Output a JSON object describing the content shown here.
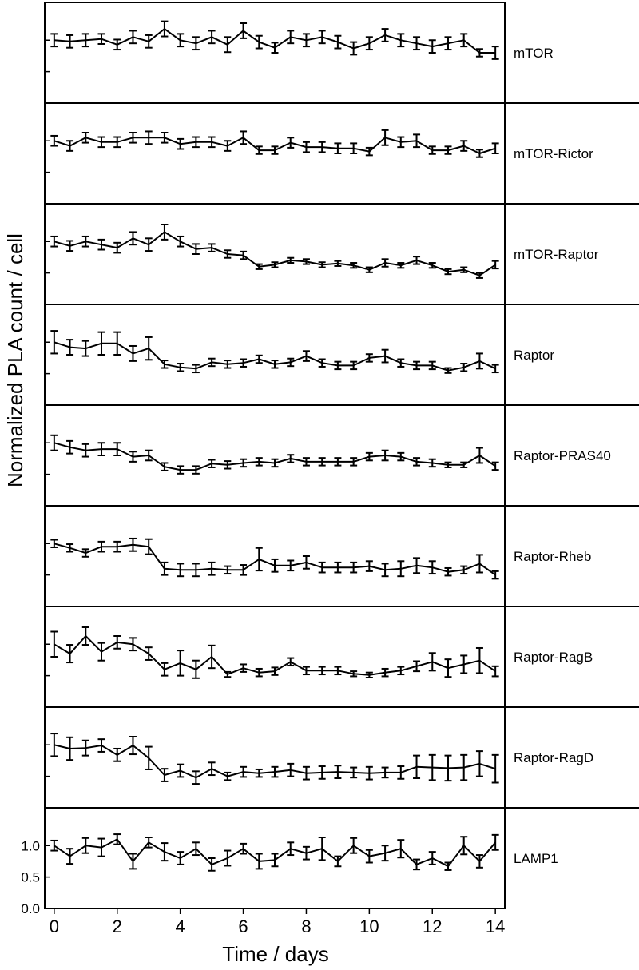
{
  "chart_data": {
    "type": "line",
    "xlabel": "Time / days",
    "ylabel": "Normalized PLA count / cell",
    "xlim": [
      -0.3,
      14.3
    ],
    "xticks": [
      0,
      2,
      4,
      6,
      8,
      10,
      12,
      14
    ],
    "ylim": [
      0,
      1.6
    ],
    "yticks": [
      0.0,
      0.5,
      1.0
    ],
    "ytick_labels_on": "LAMP1",
    "x": [
      0,
      0.5,
      1,
      1.5,
      2,
      2.5,
      3,
      3.5,
      4,
      4.5,
      5,
      5.5,
      6,
      6.5,
      7,
      7.5,
      8,
      8.5,
      9,
      9.5,
      10,
      10.5,
      11,
      11.5,
      12,
      12.5,
      13,
      13.5,
      14
    ],
    "series": [
      {
        "name": "mTOR",
        "values": [
          1.0,
          0.98,
          1.0,
          1.02,
          0.93,
          1.05,
          0.98,
          1.18,
          1.0,
          0.95,
          1.05,
          0.93,
          1.15,
          0.97,
          0.88,
          1.05,
          1.0,
          1.05,
          0.97,
          0.87,
          0.95,
          1.08,
          1.0,
          0.95,
          0.9,
          0.95,
          1.0,
          0.8,
          0.8
        ],
        "errors": [
          0.1,
          0.1,
          0.1,
          0.08,
          0.08,
          0.1,
          0.1,
          0.12,
          0.1,
          0.1,
          0.1,
          0.12,
          0.12,
          0.1,
          0.08,
          0.1,
          0.1,
          0.1,
          0.1,
          0.1,
          0.1,
          0.1,
          0.1,
          0.1,
          0.1,
          0.1,
          0.1,
          0.06,
          0.1
        ]
      },
      {
        "name": "mTOR-Rictor",
        "values": [
          1.0,
          0.92,
          1.05,
          0.98,
          0.98,
          1.05,
          1.05,
          1.05,
          0.95,
          0.98,
          0.98,
          0.92,
          1.05,
          0.85,
          0.85,
          0.97,
          0.9,
          0.9,
          0.88,
          0.88,
          0.83,
          1.05,
          0.98,
          1.0,
          0.85,
          0.85,
          0.92,
          0.8,
          0.88
        ],
        "errors": [
          0.08,
          0.08,
          0.08,
          0.08,
          0.08,
          0.08,
          0.1,
          0.08,
          0.08,
          0.08,
          0.08,
          0.08,
          0.1,
          0.06,
          0.06,
          0.08,
          0.08,
          0.08,
          0.08,
          0.08,
          0.06,
          0.12,
          0.08,
          0.1,
          0.06,
          0.06,
          0.08,
          0.06,
          0.08
        ]
      },
      {
        "name": "mTOR-Raptor",
        "values": [
          1.0,
          0.93,
          1.0,
          0.95,
          0.9,
          1.05,
          0.95,
          1.15,
          1.0,
          0.88,
          0.9,
          0.8,
          0.78,
          0.6,
          0.63,
          0.7,
          0.68,
          0.63,
          0.65,
          0.62,
          0.55,
          0.66,
          0.62,
          0.7,
          0.62,
          0.52,
          0.55,
          0.46,
          0.63
        ],
        "errors": [
          0.08,
          0.08,
          0.08,
          0.08,
          0.08,
          0.1,
          0.1,
          0.12,
          0.08,
          0.08,
          0.06,
          0.06,
          0.06,
          0.04,
          0.04,
          0.04,
          0.04,
          0.04,
          0.04,
          0.04,
          0.04,
          0.06,
          0.04,
          0.06,
          0.04,
          0.04,
          0.04,
          0.04,
          0.06
        ]
      },
      {
        "name": "Raptor",
        "values": [
          1.0,
          0.92,
          0.9,
          0.98,
          0.98,
          0.82,
          0.9,
          0.65,
          0.6,
          0.58,
          0.68,
          0.65,
          0.67,
          0.73,
          0.65,
          0.68,
          0.78,
          0.67,
          0.63,
          0.63,
          0.75,
          0.78,
          0.67,
          0.63,
          0.63,
          0.55,
          0.6,
          0.7,
          0.58
        ],
        "errors": [
          0.18,
          0.12,
          0.12,
          0.18,
          0.18,
          0.12,
          0.18,
          0.06,
          0.06,
          0.06,
          0.06,
          0.06,
          0.06,
          0.06,
          0.06,
          0.06,
          0.08,
          0.06,
          0.06,
          0.06,
          0.06,
          0.1,
          0.06,
          0.06,
          0.06,
          0.04,
          0.06,
          0.12,
          0.06
        ]
      },
      {
        "name": "Raptor-PRAS40",
        "values": [
          1.0,
          0.93,
          0.88,
          0.9,
          0.9,
          0.78,
          0.8,
          0.62,
          0.57,
          0.57,
          0.67,
          0.65,
          0.68,
          0.7,
          0.68,
          0.75,
          0.7,
          0.7,
          0.7,
          0.7,
          0.78,
          0.8,
          0.78,
          0.7,
          0.68,
          0.65,
          0.65,
          0.8,
          0.63
        ],
        "errors": [
          0.12,
          0.1,
          0.1,
          0.1,
          0.1,
          0.08,
          0.08,
          0.06,
          0.06,
          0.06,
          0.06,
          0.06,
          0.06,
          0.06,
          0.06,
          0.06,
          0.06,
          0.06,
          0.06,
          0.06,
          0.06,
          0.08,
          0.06,
          0.06,
          0.06,
          0.04,
          0.04,
          0.12,
          0.06
        ]
      },
      {
        "name": "Raptor-Rheb",
        "values": [
          1.0,
          0.93,
          0.85,
          0.95,
          0.95,
          0.98,
          0.95,
          0.6,
          0.58,
          0.58,
          0.6,
          0.58,
          0.58,
          0.75,
          0.65,
          0.65,
          0.7,
          0.62,
          0.62,
          0.62,
          0.64,
          0.58,
          0.6,
          0.65,
          0.62,
          0.55,
          0.58,
          0.68,
          0.5
        ],
        "errors": [
          0.06,
          0.06,
          0.06,
          0.08,
          0.08,
          0.1,
          0.12,
          0.1,
          0.1,
          0.1,
          0.1,
          0.06,
          0.08,
          0.18,
          0.1,
          0.08,
          0.1,
          0.08,
          0.08,
          0.08,
          0.08,
          0.1,
          0.12,
          0.12,
          0.1,
          0.06,
          0.06,
          0.14,
          0.06
        ]
      },
      {
        "name": "Raptor-RagB",
        "values": [
          1.0,
          0.85,
          1.13,
          0.88,
          1.03,
          1.0,
          0.85,
          0.6,
          0.7,
          0.6,
          0.8,
          0.52,
          0.62,
          0.55,
          0.57,
          0.72,
          0.58,
          0.58,
          0.58,
          0.53,
          0.51,
          0.55,
          0.58,
          0.65,
          0.72,
          0.62,
          0.68,
          0.74,
          0.57
        ],
        "errors": [
          0.2,
          0.14,
          0.14,
          0.14,
          0.1,
          0.1,
          0.1,
          0.1,
          0.2,
          0.14,
          0.18,
          0.04,
          0.06,
          0.06,
          0.06,
          0.06,
          0.06,
          0.06,
          0.06,
          0.04,
          0.04,
          0.06,
          0.06,
          0.08,
          0.14,
          0.14,
          0.14,
          0.2,
          0.08
        ]
      },
      {
        "name": "Raptor-RagD",
        "values": [
          1.0,
          0.94,
          0.95,
          0.99,
          0.84,
          0.99,
          0.79,
          0.52,
          0.59,
          0.48,
          0.62,
          0.5,
          0.57,
          0.55,
          0.57,
          0.6,
          0.55,
          0.56,
          0.57,
          0.56,
          0.55,
          0.56,
          0.56,
          0.65,
          0.64,
          0.63,
          0.64,
          0.7,
          0.62
        ],
        "errors": [
          0.18,
          0.18,
          0.12,
          0.1,
          0.1,
          0.14,
          0.18,
          0.1,
          0.1,
          0.1,
          0.1,
          0.06,
          0.08,
          0.06,
          0.08,
          0.1,
          0.1,
          0.1,
          0.1,
          0.08,
          0.1,
          0.08,
          0.1,
          0.18,
          0.2,
          0.2,
          0.2,
          0.2,
          0.22
        ]
      },
      {
        "name": "LAMP1",
        "values": [
          1.0,
          0.83,
          1.0,
          0.97,
          1.1,
          0.75,
          1.05,
          0.9,
          0.8,
          0.95,
          0.7,
          0.8,
          0.95,
          0.75,
          0.77,
          0.95,
          0.88,
          0.95,
          0.75,
          1.0,
          0.83,
          0.88,
          0.95,
          0.7,
          0.8,
          0.67,
          1.0,
          0.75,
          1.05
        ],
        "errors": [
          0.08,
          0.12,
          0.12,
          0.14,
          0.08,
          0.12,
          0.08,
          0.14,
          0.1,
          0.1,
          0.1,
          0.12,
          0.08,
          0.12,
          0.1,
          0.1,
          0.1,
          0.18,
          0.08,
          0.12,
          0.1,
          0.12,
          0.14,
          0.08,
          0.1,
          0.06,
          0.14,
          0.1,
          0.12
        ]
      }
    ]
  }
}
